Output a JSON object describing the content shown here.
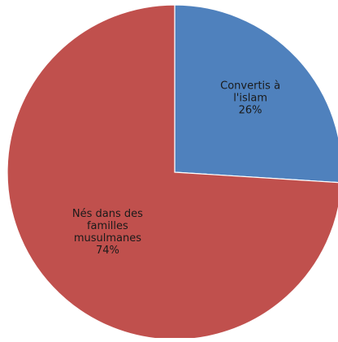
{
  "chart_data": {
    "type": "pie",
    "title": "",
    "start_angle_deg": 0,
    "direction": "clockwise",
    "slices": [
      {
        "label_lines": [
          "Convertis à",
          "l'islam"
        ],
        "value": 26,
        "value_label": "26%",
        "color": "#4F81BD"
      },
      {
        "label_lines": [
          "Nés dans des",
          "familles",
          "musulmanes"
        ],
        "value": 74,
        "value_label": "74%",
        "color": "#C0504D"
      }
    ],
    "slice_border_color": "#ffffff",
    "legend": "none"
  }
}
